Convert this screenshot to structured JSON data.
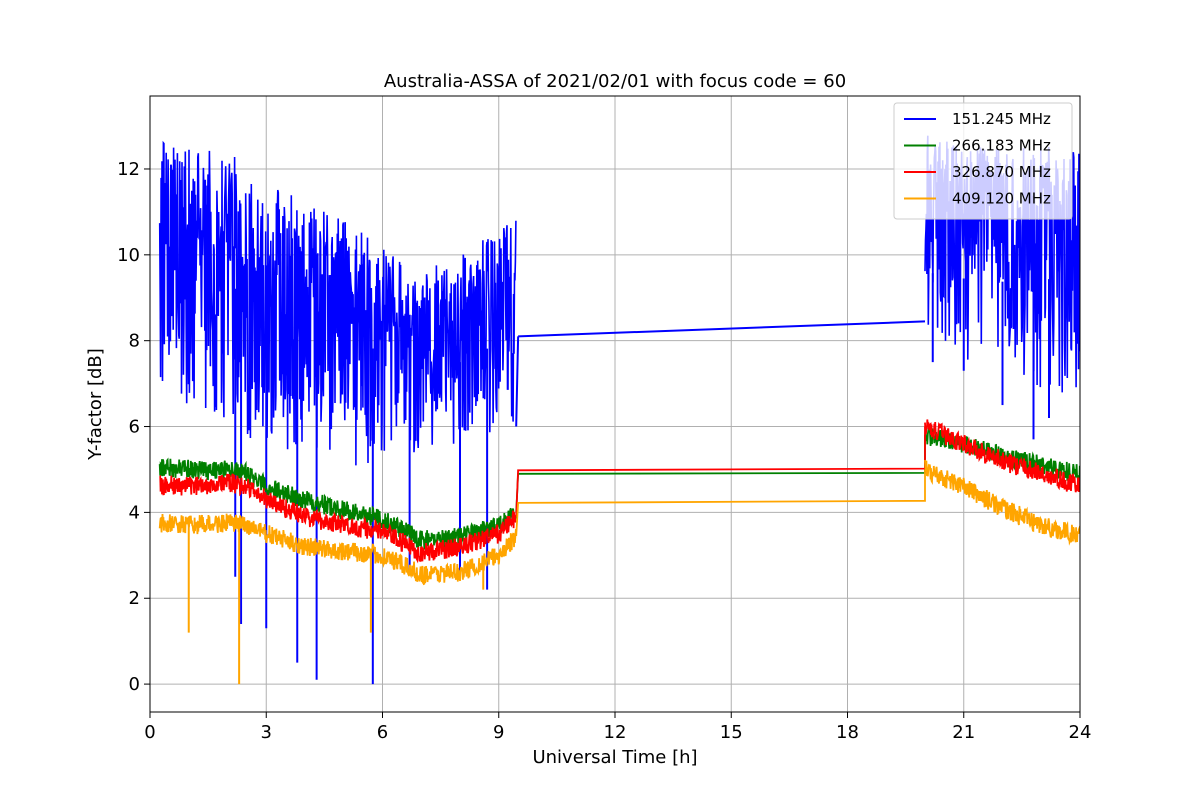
{
  "chart_data": {
    "type": "line",
    "title": "Australia-ASSA of 2021/02/01 with focus code = 60",
    "xlabel": "Universal Time [h]",
    "ylabel": "Y-factor [dB]",
    "xlim": [
      0,
      24
    ],
    "ylim": [
      -0.65,
      13.7
    ],
    "xticks": [
      0,
      3,
      6,
      9,
      12,
      15,
      18,
      21,
      24
    ],
    "yticks": [
      0,
      2,
      4,
      6,
      8,
      10,
      12
    ],
    "grid": true,
    "legend_position": "top-right",
    "gap": [
      9.5,
      20.0
    ],
    "series": [
      {
        "name": "151.245 MHz",
        "color": "#0000ff",
        "noise": "high",
        "envelope_x": [
          0.25,
          1.0,
          2.0,
          3.0,
          4.0,
          5.0,
          6.0,
          6.5,
          7.0,
          8.0,
          9.0,
          9.45
        ],
        "envelope_max": [
          12.7,
          12.6,
          12.4,
          11.8,
          11.2,
          10.8,
          10.3,
          9.8,
          9.6,
          10.0,
          10.6,
          10.8
        ],
        "envelope_min": [
          7.0,
          6.5,
          6.0,
          5.5,
          5.3,
          5.1,
          5.0,
          5.2,
          5.5,
          5.6,
          5.8,
          6.0
        ],
        "spikes": [
          [
            2.2,
            2.5
          ],
          [
            2.35,
            1.4
          ],
          [
            3.0,
            1.3
          ],
          [
            3.8,
            0.5
          ],
          [
            4.3,
            0.1
          ],
          [
            5.75,
            0.0
          ],
          [
            6.7,
            2.6
          ],
          [
            8.0,
            2.6
          ],
          [
            8.7,
            2.2
          ]
        ],
        "gap_line": [
          [
            9.5,
            8.1
          ],
          [
            20.0,
            8.45
          ]
        ],
        "envelope2_x": [
          20.0,
          20.5,
          21.0,
          22.0,
          23.0,
          24.0
        ],
        "envelope2_max": [
          12.8,
          12.7,
          12.6,
          12.5,
          12.6,
          12.5
        ],
        "envelope2_min": [
          8.3,
          7.8,
          7.5,
          7.2,
          6.8,
          6.5
        ],
        "spikes2": [
          [
            20.2,
            7.5
          ],
          [
            21.0,
            7.3
          ],
          [
            22.0,
            6.5
          ],
          [
            22.8,
            5.7
          ],
          [
            23.2,
            6.2
          ]
        ]
      },
      {
        "name": "266.183 MHz",
        "color": "#008000",
        "noise": "low",
        "curve_x": [
          0.25,
          1.0,
          2.0,
          2.5,
          3.0,
          4.0,
          5.0,
          6.0,
          7.0,
          8.0,
          9.0,
          9.45
        ],
        "curve_y": [
          5.05,
          5.0,
          5.0,
          4.9,
          4.6,
          4.3,
          4.05,
          3.85,
          3.35,
          3.45,
          3.7,
          4.0
        ],
        "gap_line": [
          [
            9.5,
            4.9
          ],
          [
            20.0,
            4.92
          ]
        ],
        "curve2_x": [
          20.0,
          20.5,
          21.0,
          22.0,
          23.0,
          24.0
        ],
        "curve2_y": [
          5.8,
          5.7,
          5.6,
          5.3,
          5.1,
          4.9
        ]
      },
      {
        "name": "326.870 MHz",
        "color": "#ff0000",
        "noise": "low",
        "curve_x": [
          0.25,
          1.0,
          2.0,
          2.5,
          3.0,
          4.0,
          5.0,
          6.0,
          7.0,
          8.0,
          9.0,
          9.45
        ],
        "curve_y": [
          4.65,
          4.6,
          4.7,
          4.6,
          4.3,
          3.9,
          3.7,
          3.55,
          3.05,
          3.2,
          3.5,
          3.9
        ],
        "gap_line": [
          [
            9.5,
            4.98
          ],
          [
            20.0,
            5.02
          ]
        ],
        "curve2_x": [
          20.0,
          20.5,
          21.0,
          22.0,
          23.0,
          24.0
        ],
        "curve2_y": [
          6.0,
          5.8,
          5.6,
          5.2,
          4.9,
          4.6
        ]
      },
      {
        "name": "409.120 MHz",
        "color": "#ffa500",
        "noise": "low",
        "curve_x": [
          0.25,
          1.0,
          2.0,
          2.5,
          3.0,
          4.0,
          5.0,
          6.0,
          7.0,
          8.0,
          9.0,
          9.45
        ],
        "curve_y": [
          3.75,
          3.7,
          3.75,
          3.7,
          3.5,
          3.2,
          3.1,
          3.0,
          2.55,
          2.6,
          3.0,
          3.45
        ],
        "spikes": [
          [
            1.0,
            1.2
          ],
          [
            2.3,
            0.0
          ],
          [
            5.7,
            1.2
          ],
          [
            8.6,
            2.2
          ]
        ],
        "gap_line": [
          [
            9.5,
            4.22
          ],
          [
            20.0,
            4.27
          ]
        ],
        "curve2_x": [
          20.0,
          20.5,
          21.0,
          22.0,
          23.0,
          24.0
        ],
        "curve2_y": [
          5.0,
          4.8,
          4.6,
          4.1,
          3.7,
          3.45
        ]
      }
    ]
  }
}
